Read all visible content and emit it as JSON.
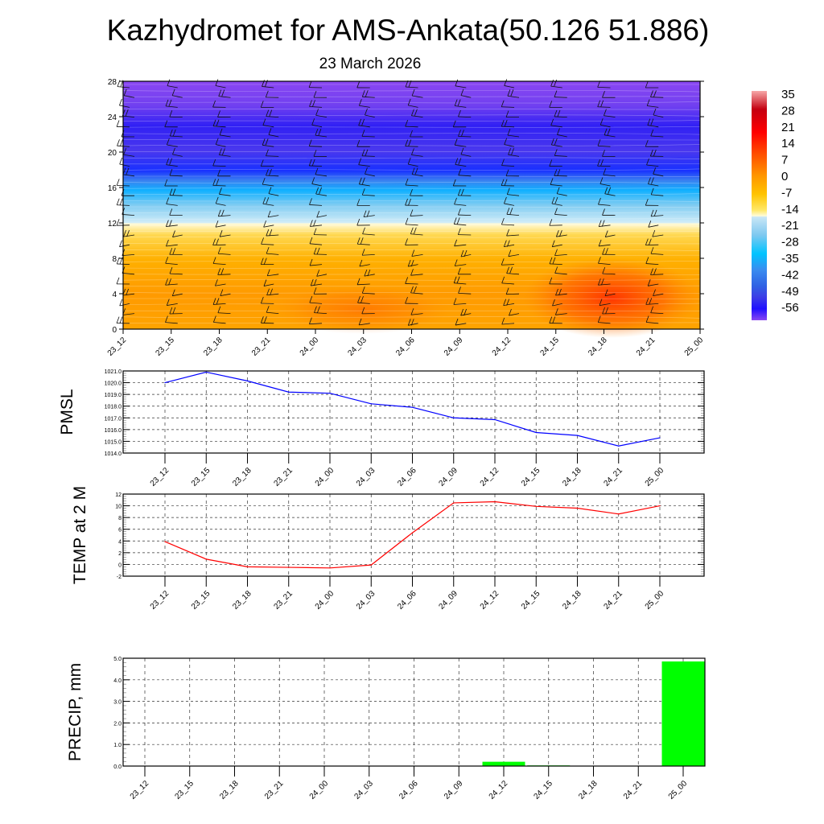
{
  "title": "Kazhydromet for AMS-Ankata(50.126 51.886)",
  "subtitle": "23 March 2026",
  "chart_data": [
    {
      "type": "heatmap",
      "description_of_fill": "temperature cross-section with wind barbs",
      "categories": [
        "23_12",
        "23_15",
        "23_18",
        "23_21",
        "24_00",
        "24_03",
        "24_06",
        "24_09",
        "24_12",
        "24_15",
        "24_18",
        "24_21",
        "25_00"
      ],
      "ylim": [
        0,
        28
      ],
      "yticks": [
        "0",
        "4",
        "8",
        "12",
        "16",
        "20",
        "24",
        "28"
      ],
      "colorbar": {
        "labels": [
          "35",
          "28",
          "21",
          "14",
          "7",
          "0",
          "-7",
          "-14",
          "-21",
          "-28",
          "-35",
          "-42",
          "-49",
          "-56"
        ],
        "colors": [
          "#f6a8a8",
          "#c40010",
          "#ff0000",
          "#ff4a00",
          "#ff9600",
          "#ffc400",
          "#ffe868",
          "#fffcd8",
          "#c8e6f6",
          "#7cc8f0",
          "#00c4ff",
          "#3a8cf0",
          "#3062e4",
          "#3c3ce6",
          "#2010ff",
          "#8a46f2"
        ]
      }
    },
    {
      "type": "line",
      "ylabel": "PMSL",
      "categories": [
        "23_12",
        "23_15",
        "23_18",
        "23_21",
        "24_00",
        "24_03",
        "24_06",
        "24_09",
        "24_12",
        "24_15",
        "24_18",
        "24_21",
        "25_00"
      ],
      "values": [
        1020.0,
        1020.9,
        1020.15,
        1019.2,
        1019.1,
        1018.2,
        1017.9,
        1017.0,
        1016.85,
        1015.75,
        1015.5,
        1014.6,
        1015.3
      ],
      "ylim": [
        1014,
        1021
      ],
      "yticks": [
        "1014.0",
        "1015.0",
        "1016.0",
        "1017.0",
        "1018.0",
        "1019.0",
        "1020.0",
        "1021.0"
      ],
      "color": "#0000ff"
    },
    {
      "type": "line",
      "ylabel": "TEMP at 2 M",
      "categories": [
        "23_12",
        "23_15",
        "23_18",
        "23_21",
        "24_00",
        "24_03",
        "24_06",
        "24_09",
        "24_12",
        "24_15",
        "24_18",
        "24_21",
        "25_00"
      ],
      "values": [
        3.9,
        0.9,
        -0.4,
        -0.5,
        -0.6,
        -0.1,
        5.4,
        10.5,
        10.7,
        9.9,
        9.6,
        8.6,
        10.0
      ],
      "ylim": [
        -2,
        12
      ],
      "yticks": [
        "-2",
        "0",
        "2",
        "4",
        "6",
        "8",
        "10",
        "12"
      ],
      "color": "#ff0000"
    },
    {
      "type": "bar",
      "ylabel": "PRECIP, mm",
      "categories": [
        "23_12",
        "23_15",
        "23_18",
        "23_21",
        "24_00",
        "24_03",
        "24_06",
        "24_09",
        "24_12",
        "24_15",
        "24_18",
        "24_21",
        "25_00"
      ],
      "values": [
        0,
        0,
        0,
        0,
        0,
        0,
        0,
        0,
        0.2,
        0.03,
        0,
        0,
        4.85
      ],
      "ylim": [
        0,
        5
      ],
      "yticks": [
        "0.0",
        "1.0",
        "2.0",
        "3.0",
        "4.0",
        "5.0"
      ],
      "color": "#00ff00"
    }
  ]
}
